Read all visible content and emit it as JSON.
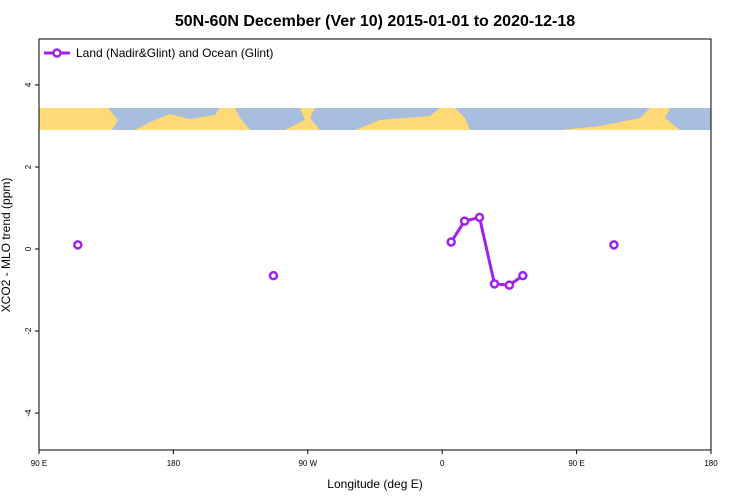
{
  "chart_data": {
    "type": "line",
    "title": "50N-60N December (Ver 10)   2015-01-01 to 2020-12-18",
    "x_label": "Longitude (deg E)",
    "y_label": "XCO2 - MLO trend (ppm)",
    "xlim": [
      90,
      540
    ],
    "ylim": [
      -4.9,
      5.12
    ],
    "xticks": [
      {
        "value": 90,
        "label": "90 E"
      },
      {
        "value": 180,
        "label": "180"
      },
      {
        "value": 270,
        "label": "90 W"
      },
      {
        "value": 360,
        "label": "0"
      },
      {
        "value": 450,
        "label": "90 E"
      },
      {
        "value": 540,
        "label": "180"
      }
    ],
    "yticks": [
      -4,
      -2,
      0,
      2,
      4
    ],
    "legend_position": "top-left",
    "series": [
      {
        "name": "Land (Nadir&Glint) and Ocean (Glint)",
        "color": "#a020f0",
        "x": [
          116,
          180,
          247,
          300,
          366,
          375,
          385,
          395,
          405,
          414,
          445,
          475
        ],
        "values": [
          0.1,
          null,
          -0.65,
          null,
          0.17,
          0.68,
          0.77,
          -0.85,
          -0.88,
          -0.65,
          null,
          0.1
        ]
      }
    ]
  }
}
